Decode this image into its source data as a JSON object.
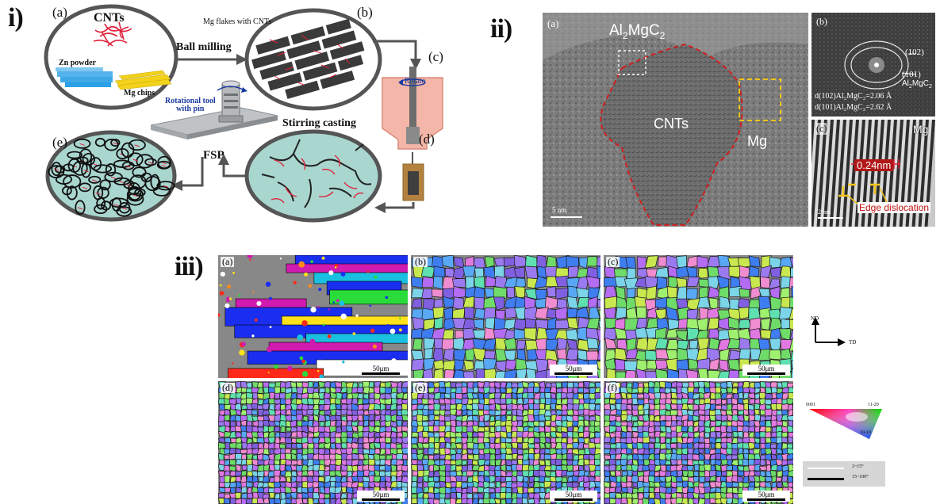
{
  "section_i": {
    "numeral": "i)",
    "labels": {
      "a": "(a)",
      "b": "(b)",
      "c": "(c)",
      "d": "(d)",
      "e": "(e)"
    },
    "cnts": "CNTs",
    "zn_powder": "Zn powder",
    "mg_chips": "Mg chips",
    "ball_milling": "Ball milling",
    "mg_flakes": "Mg flakes with CNTs",
    "rotate": "Rotate",
    "stirring_casting": "Stirring casting",
    "rotational_tool_l1": "Rotational tool",
    "rotational_tool_l2": "with pin",
    "fsp": "FSP"
  },
  "section_ii": {
    "numeral": "ii)",
    "a_label": "(a)",
    "b_label": "(b)",
    "c_label": "(c)",
    "al2mgc2_main": "Al",
    "al2mgc2_sub1": "2",
    "al2mgc2_mid": "MgC",
    "al2mgc2_sub2": "2",
    "cnts": "CNTs",
    "mg": "Mg",
    "ring_102": "(102)",
    "ring_101": "(101)",
    "ring_phase": "Al",
    "ring_phase_sub": "2",
    "ring_phase_mid": "MgC",
    "ring_phase_sub2": "2",
    "d102": "d(102)Al₂MgC₂=2.06 Å",
    "d101": "d(101)Al₂MgC₂=2.62 Å",
    "c_mg": "Mg",
    "lattice": "0.24nm",
    "edge": "Edge dislocation",
    "scale_a": "5 nm",
    "scale_c": "2 nm"
  },
  "section_iii": {
    "numeral": "iii)",
    "panels": [
      {
        "label": "(a)",
        "scale": "50μm"
      },
      {
        "label": "(b)",
        "scale": "50μm"
      },
      {
        "label": "(c)",
        "scale": "50μm"
      },
      {
        "label": "(d)",
        "scale": "50μm"
      },
      {
        "label": "(e)",
        "scale": "50μm"
      },
      {
        "label": "(f)",
        "scale": "50μm"
      }
    ],
    "axis_nd": "ND",
    "axis_td": "TD",
    "ipf_0001": "0001",
    "ipf_1120": "11-20",
    "ipf_1010": "10-10",
    "legend_low": "2~15°",
    "legend_high": "15~100°"
  },
  "colors": {
    "cnt_red": "#e0223a",
    "zn_blue": "#2aa0e6",
    "mg_yellow": "#f2d21a",
    "flake_dark": "#3a3a3a",
    "matrix_teal": "#a9d6cf",
    "crucible_pink": "#f4b6a8",
    "dashed_red": "#d11e1e",
    "dashed_yellow": "#f0c419"
  }
}
